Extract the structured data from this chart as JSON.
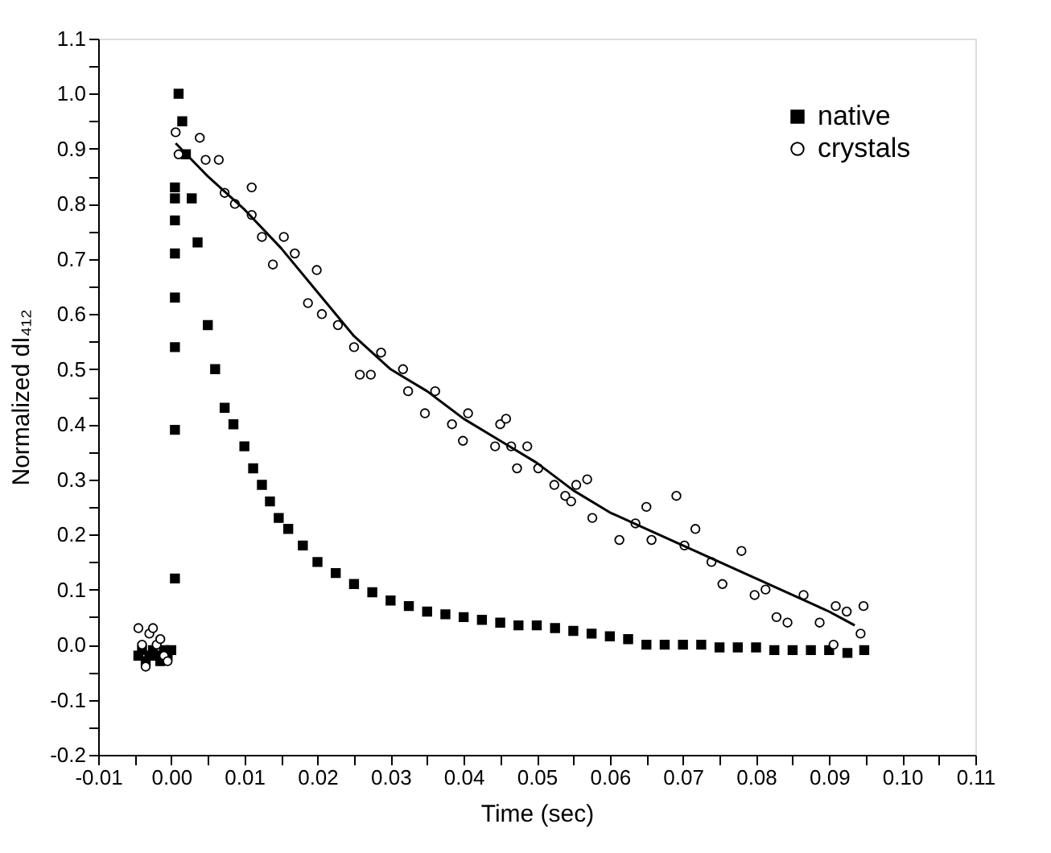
{
  "chart_data": {
    "type": "scatter",
    "xlabel": "Time (sec)",
    "ylabel": "Normalized dI₄₁₂",
    "xlim": [
      -0.01,
      0.11
    ],
    "ylim": [
      -0.2,
      1.1
    ],
    "xticks": [
      {
        "value": -0.01,
        "label": "-0.01"
      },
      {
        "value": -0.005,
        "label": null
      },
      {
        "value": 0,
        "label": "0.00"
      },
      {
        "value": 0.005,
        "label": null
      },
      {
        "value": 0.01,
        "label": "0.01"
      },
      {
        "value": 0.015,
        "label": null
      },
      {
        "value": 0.02,
        "label": "0.02"
      },
      {
        "value": 0.025,
        "label": null
      },
      {
        "value": 0.03,
        "label": "0.03"
      },
      {
        "value": 0.035,
        "label": null
      },
      {
        "value": 0.04,
        "label": "0.04"
      },
      {
        "value": 0.045,
        "label": null
      },
      {
        "value": 0.05,
        "label": "0.05"
      },
      {
        "value": 0.055,
        "label": null
      },
      {
        "value": 0.06,
        "label": "0.06"
      },
      {
        "value": 0.065,
        "label": null
      },
      {
        "value": 0.07,
        "label": "0.07"
      },
      {
        "value": 0.075,
        "label": null
      },
      {
        "value": 0.08,
        "label": "0.08"
      },
      {
        "value": 0.085,
        "label": null
      },
      {
        "value": 0.09,
        "label": "0.09"
      },
      {
        "value": 0.095,
        "label": null
      },
      {
        "value": 0.1,
        "label": "0.10"
      },
      {
        "value": 0.105,
        "label": null
      },
      {
        "value": 0.11,
        "label": "0.11"
      }
    ],
    "yticks": [
      -0.2,
      {
        "value": -0.15,
        "label": null
      },
      -0.1,
      {
        "value": -0.05,
        "label": null
      },
      {
        "value": 0,
        "label": "0.0"
      },
      {
        "value": 0.05,
        "label": null
      },
      0.1,
      {
        "value": 0.15,
        "label": null
      },
      0.2,
      {
        "value": 0.25,
        "label": null
      },
      0.3,
      {
        "value": 0.35,
        "label": null
      },
      0.4,
      {
        "value": 0.45,
        "label": null
      },
      0.5,
      {
        "value": 0.55,
        "label": null
      },
      0.6,
      {
        "value": 0.65,
        "label": null
      },
      0.7,
      {
        "value": 0.75,
        "label": null
      },
      0.8,
      {
        "value": 0.85,
        "label": null
      },
      0.9,
      {
        "value": 0.95,
        "label": null
      },
      {
        "value": 1.0,
        "label": "1.0"
      },
      {
        "value": 1.05,
        "label": null
      },
      1.1
    ],
    "grid": false,
    "legend": "top right",
    "series": [
      {
        "name": "native",
        "marker": "square",
        "color": "#000000",
        "x": [
          -0.0045,
          -0.004,
          -0.0035,
          -0.003,
          -0.0025,
          -0.002,
          -0.0015,
          -0.001,
          -0.0005,
          0,
          0.0005,
          0.0005,
          0.0005,
          0.0005,
          0.0005,
          0.0005,
          0.0005,
          0.0005,
          0.001,
          0.0015,
          0.002,
          0.0028,
          0.0036,
          0.005,
          0.006,
          0.0073,
          0.0085,
          0.01,
          0.0112,
          0.0124,
          0.0135,
          0.0147,
          0.016,
          0.018,
          0.02,
          0.0225,
          0.025,
          0.0275,
          0.03,
          0.0325,
          0.035,
          0.0375,
          0.04,
          0.0425,
          0.045,
          0.0475,
          0.05,
          0.0525,
          0.055,
          0.0575,
          0.06,
          0.0625,
          0.065,
          0.0675,
          0.07,
          0.0725,
          0.075,
          0.0775,
          0.08,
          0.0825,
          0.085,
          0.0875,
          0.09,
          0.0925,
          0.0948
        ],
        "values": [
          -0.02,
          -0.01,
          -0.03,
          -0.02,
          -0.01,
          -0.02,
          -0.03,
          -0.01,
          -0.02,
          -0.01,
          0.12,
          0.39,
          0.54,
          0.63,
          0.71,
          0.77,
          0.81,
          0.83,
          1.0,
          0.95,
          0.89,
          0.81,
          0.73,
          0.58,
          0.5,
          0.43,
          0.4,
          0.36,
          0.32,
          0.29,
          0.26,
          0.23,
          0.21,
          0.18,
          0.15,
          0.13,
          0.11,
          0.095,
          0.08,
          0.07,
          0.06,
          0.055,
          0.05,
          0.045,
          0.04,
          0.035,
          0.035,
          0.03,
          0.025,
          0.02,
          0.015,
          0.01,
          0.0,
          0.0,
          0.0,
          0.0,
          -0.005,
          -0.005,
          -0.005,
          -0.01,
          -0.01,
          -0.01,
          -0.01,
          -0.015,
          -0.01
        ]
      },
      {
        "name": "crystals",
        "marker": "circle",
        "color": "#000000",
        "x": [
          -0.0045,
          -0.004,
          -0.0035,
          -0.003,
          -0.0025,
          -0.002,
          -0.0015,
          -0.001,
          -0.0005,
          0.0006,
          0.001,
          0.0039,
          0.0047,
          0.0065,
          0.0073,
          0.0087,
          0.011,
          0.011,
          0.0124,
          0.0139,
          0.0154,
          0.0169,
          0.0187,
          0.0199,
          0.0206,
          0.0228,
          0.025,
          0.0258,
          0.0273,
          0.0287,
          0.0317,
          0.0324,
          0.0347,
          0.0361,
          0.0384,
          0.0399,
          0.0406,
          0.0443,
          0.045,
          0.0458,
          0.0465,
          0.0473,
          0.0487,
          0.0502,
          0.0524,
          0.0539,
          0.0547,
          0.0554,
          0.0569,
          0.0576,
          0.0613,
          0.0635,
          0.065,
          0.0657,
          0.0691,
          0.0702,
          0.0717,
          0.0739,
          0.0754,
          0.078,
          0.0798,
          0.0813,
          0.0828,
          0.0843,
          0.0865,
          0.0887,
          0.0906,
          0.0909,
          0.0924,
          0.0943,
          0.0947
        ],
        "values": [
          0.03,
          0.0,
          -0.04,
          0.02,
          0.03,
          0.0,
          0.01,
          -0.02,
          -0.03,
          0.93,
          0.89,
          0.92,
          0.88,
          0.88,
          0.82,
          0.8,
          0.83,
          0.78,
          0.74,
          0.69,
          0.74,
          0.71,
          0.62,
          0.68,
          0.6,
          0.58,
          0.54,
          0.49,
          0.49,
          0.53,
          0.5,
          0.46,
          0.42,
          0.46,
          0.4,
          0.37,
          0.42,
          0.36,
          0.4,
          0.41,
          0.36,
          0.32,
          0.36,
          0.32,
          0.29,
          0.27,
          0.26,
          0.29,
          0.3,
          0.23,
          0.19,
          0.22,
          0.25,
          0.19,
          0.27,
          0.18,
          0.21,
          0.15,
          0.11,
          0.17,
          0.09,
          0.1,
          0.05,
          0.04,
          0.09,
          0.04,
          0.0,
          0.07,
          0.06,
          0.02,
          0.07
        ]
      },
      {
        "type": "line",
        "color": "#000000",
        "line_style": "solid",
        "x": [
          0.0006,
          0.005,
          0.01,
          0.015,
          0.02,
          0.025,
          0.03,
          0.035,
          0.04,
          0.045,
          0.05,
          0.055,
          0.06,
          0.065,
          0.07,
          0.075,
          0.08,
          0.085,
          0.09,
          0.0935
        ],
        "values": [
          0.91,
          0.85,
          0.79,
          0.72,
          0.64,
          0.56,
          0.5,
          0.46,
          0.41,
          0.37,
          0.33,
          0.28,
          0.24,
          0.21,
          0.18,
          0.15,
          0.12,
          0.09,
          0.06,
          0.035
        ]
      }
    ]
  }
}
